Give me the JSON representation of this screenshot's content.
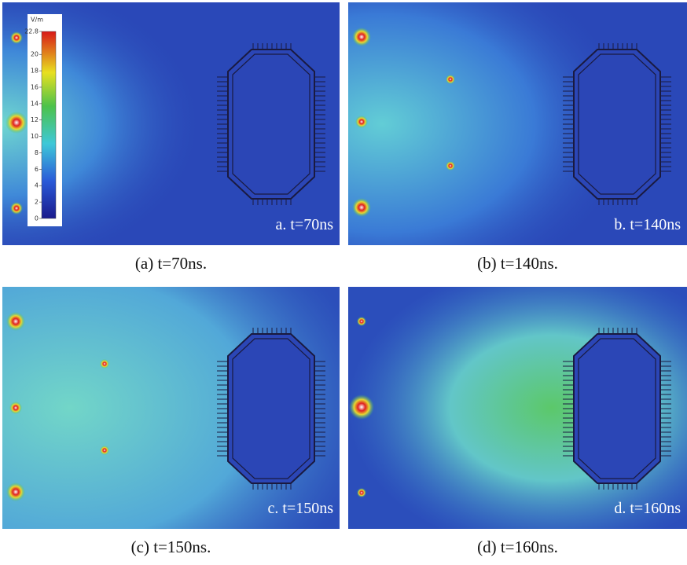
{
  "panels": [
    {
      "label": "a. t=70ns",
      "caption": "(a) t=70ns."
    },
    {
      "label": "b. t=140ns",
      "caption": "(b) t=140ns."
    },
    {
      "label": "c. t=150ns",
      "caption": "(c) t=150ns."
    },
    {
      "label": "d. t=160ns",
      "caption": "(d) t=160ns."
    }
  ],
  "colorbar": {
    "unit": "V/m",
    "ticks": [
      0,
      2,
      4,
      6,
      8,
      10,
      12,
      14,
      16,
      18,
      20,
      22.8
    ]
  }
}
